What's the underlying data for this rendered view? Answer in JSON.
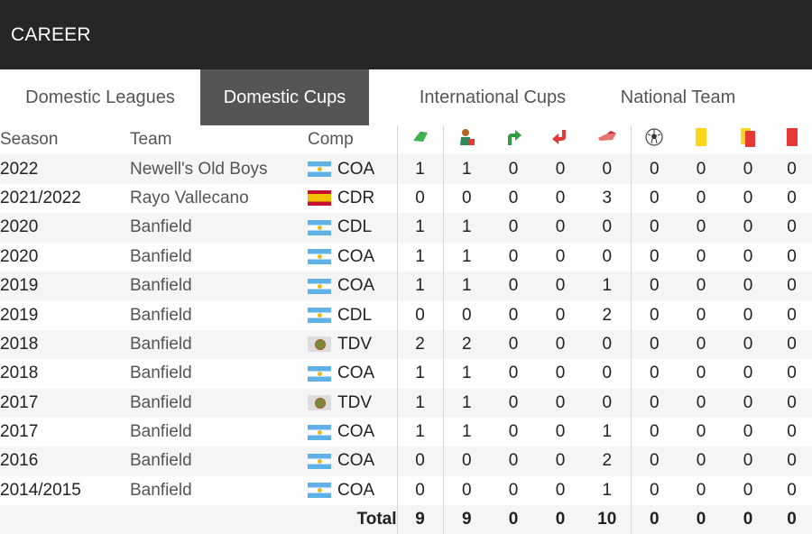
{
  "header": {
    "title": "CAREER"
  },
  "tabs": [
    {
      "label": "Domestic Leagues",
      "active": false
    },
    {
      "label": "Domestic Cups",
      "active": true
    },
    {
      "label": "International Cups",
      "active": false
    },
    {
      "label": "National Team",
      "active": false
    }
  ],
  "columns": {
    "season": "Season",
    "team": "Team",
    "comp": "Comp",
    "icons": [
      "appearances-icon",
      "starting-lineup-icon",
      "substituted-in-icon",
      "substituted-out-icon",
      "bench-icon",
      "goals-icon",
      "yellow-card-icon",
      "second-yellow-card-icon",
      "red-card-icon"
    ]
  },
  "rows": [
    {
      "season": "2022",
      "team": "Newell's Old Boys",
      "flag": "argentina",
      "comp": "COA",
      "stats": [
        "1",
        "1",
        "0",
        "0",
        "0",
        "0",
        "0",
        "0",
        "0"
      ]
    },
    {
      "season": "2021/2022",
      "team": "Rayo Vallecano",
      "flag": "spain",
      "comp": "CDR",
      "stats": [
        "0",
        "0",
        "0",
        "0",
        "3",
        "0",
        "0",
        "0",
        "0"
      ]
    },
    {
      "season": "2020",
      "team": "Banfield",
      "flag": "argentina",
      "comp": "CDL",
      "stats": [
        "1",
        "1",
        "0",
        "0",
        "0",
        "0",
        "0",
        "0",
        "0"
      ]
    },
    {
      "season": "2020",
      "team": "Banfield",
      "flag": "argentina",
      "comp": "COA",
      "stats": [
        "1",
        "1",
        "0",
        "0",
        "0",
        "0",
        "0",
        "0",
        "0"
      ]
    },
    {
      "season": "2019",
      "team": "Banfield",
      "flag": "argentina",
      "comp": "COA",
      "stats": [
        "1",
        "1",
        "0",
        "0",
        "1",
        "0",
        "0",
        "0",
        "0"
      ]
    },
    {
      "season": "2019",
      "team": "Banfield",
      "flag": "argentina",
      "comp": "CDL",
      "stats": [
        "0",
        "0",
        "0",
        "0",
        "2",
        "0",
        "0",
        "0",
        "0"
      ]
    },
    {
      "season": "2018",
      "team": "Banfield",
      "flag": "ball",
      "comp": "TDV",
      "stats": [
        "2",
        "2",
        "0",
        "0",
        "0",
        "0",
        "0",
        "0",
        "0"
      ]
    },
    {
      "season": "2018",
      "team": "Banfield",
      "flag": "argentina",
      "comp": "COA",
      "stats": [
        "1",
        "1",
        "0",
        "0",
        "0",
        "0",
        "0",
        "0",
        "0"
      ]
    },
    {
      "season": "2017",
      "team": "Banfield",
      "flag": "ball",
      "comp": "TDV",
      "stats": [
        "1",
        "1",
        "0",
        "0",
        "0",
        "0",
        "0",
        "0",
        "0"
      ]
    },
    {
      "season": "2017",
      "team": "Banfield",
      "flag": "argentina",
      "comp": "COA",
      "stats": [
        "1",
        "1",
        "0",
        "0",
        "1",
        "0",
        "0",
        "0",
        "0"
      ]
    },
    {
      "season": "2016",
      "team": "Banfield",
      "flag": "argentina",
      "comp": "COA",
      "stats": [
        "0",
        "0",
        "0",
        "0",
        "2",
        "0",
        "0",
        "0",
        "0"
      ]
    },
    {
      "season": "2014/2015",
      "team": "Banfield",
      "flag": "argentina",
      "comp": "COA",
      "stats": [
        "0",
        "0",
        "0",
        "0",
        "1",
        "0",
        "0",
        "0",
        "0"
      ]
    }
  ],
  "total": {
    "label": "Total",
    "stats": [
      "9",
      "9",
      "0",
      "0",
      "10",
      "0",
      "0",
      "0",
      "0"
    ]
  }
}
